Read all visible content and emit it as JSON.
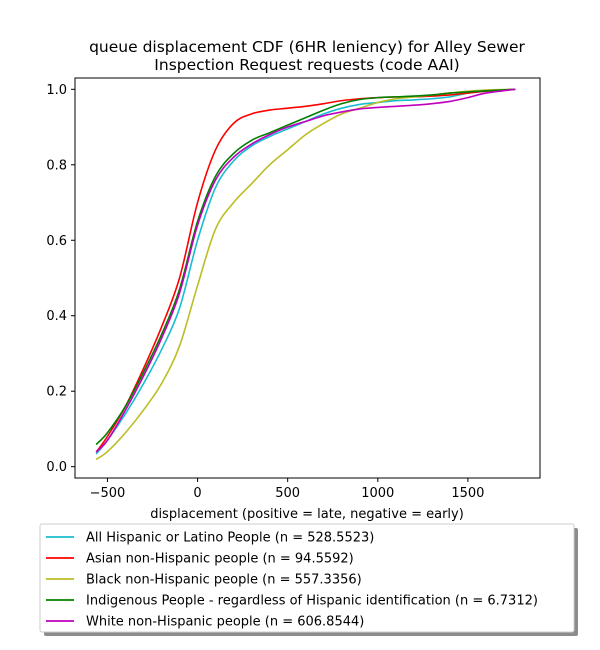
{
  "chart_data": {
    "type": "line",
    "title_lines": [
      "queue displacement CDF (6HR leniency) for Alley Sewer",
      "Inspection Request  requests (code AAI)"
    ],
    "xlabel": "displacement (positive = late, negative = early)",
    "ylabel": "",
    "xlim": [
      -680,
      1900
    ],
    "ylim": [
      -0.03,
      1.03
    ],
    "xticks": [
      -500,
      0,
      500,
      1000,
      1500
    ],
    "yticks": [
      0.0,
      0.2,
      0.4,
      0.6,
      0.8,
      1.0
    ],
    "ytick_labels": [
      "0.0",
      "0.2",
      "0.4",
      "0.6",
      "0.8",
      "1.0"
    ],
    "grid": false,
    "legend_position": "below",
    "series": [
      {
        "name": "All Hispanic or Latino People (n = 528.5523)",
        "color": "#17becf",
        "x": [
          -560,
          -500,
          -400,
          -300,
          -200,
          -100,
          0,
          100,
          200,
          300,
          400,
          500,
          600,
          700,
          800,
          900,
          1000,
          1100,
          1200,
          1300,
          1400,
          1500,
          1600,
          1760
        ],
        "y": [
          0.035,
          0.07,
          0.14,
          0.22,
          0.31,
          0.42,
          0.6,
          0.74,
          0.81,
          0.85,
          0.875,
          0.895,
          0.915,
          0.935,
          0.95,
          0.96,
          0.965,
          0.97,
          0.972,
          0.975,
          0.98,
          0.99,
          0.995,
          1.0
        ]
      },
      {
        "name": "Asian non-Hispanic people (n = 94.5592)",
        "color": "#ff0000",
        "x": [
          -560,
          -500,
          -400,
          -300,
          -200,
          -100,
          0,
          100,
          200,
          300,
          400,
          500,
          600,
          700,
          800,
          900,
          1000,
          1100,
          1200,
          1300,
          1400,
          1500,
          1600,
          1760
        ],
        "y": [
          0.04,
          0.08,
          0.16,
          0.26,
          0.37,
          0.5,
          0.7,
          0.84,
          0.91,
          0.935,
          0.945,
          0.95,
          0.955,
          0.962,
          0.97,
          0.975,
          0.978,
          0.98,
          0.98,
          0.982,
          0.985,
          0.99,
          0.995,
          1.0
        ]
      },
      {
        "name": "Black non-Hispanic people (n = 557.3356)",
        "color": "#bcbd22",
        "x": [
          -560,
          -500,
          -400,
          -300,
          -200,
          -100,
          0,
          100,
          200,
          300,
          400,
          500,
          600,
          700,
          800,
          900,
          1000,
          1100,
          1200,
          1300,
          1400,
          1500,
          1600,
          1760
        ],
        "y": [
          0.02,
          0.04,
          0.09,
          0.15,
          0.22,
          0.32,
          0.48,
          0.63,
          0.7,
          0.75,
          0.8,
          0.84,
          0.88,
          0.91,
          0.935,
          0.95,
          0.965,
          0.975,
          0.98,
          0.985,
          0.99,
          0.995,
          0.998,
          1.0
        ]
      },
      {
        "name": "Indigenous People - regardless of Hispanic identification (n = 6.7312)",
        "color": "#008000",
        "x": [
          -560,
          -500,
          -400,
          -300,
          -200,
          -100,
          0,
          100,
          200,
          300,
          400,
          500,
          600,
          700,
          800,
          900,
          1000,
          1100,
          1200,
          1300,
          1400,
          1500,
          1600,
          1760
        ],
        "y": [
          0.06,
          0.09,
          0.16,
          0.25,
          0.35,
          0.47,
          0.65,
          0.77,
          0.83,
          0.865,
          0.885,
          0.905,
          0.925,
          0.945,
          0.962,
          0.973,
          0.978,
          0.98,
          0.982,
          0.985,
          0.99,
          0.993,
          0.996,
          1.0
        ]
      },
      {
        "name": "White non-Hispanic people (n = 606.8544)",
        "color": "#bf00bf",
        "x": [
          -560,
          -500,
          -400,
          -300,
          -200,
          -100,
          0,
          100,
          200,
          300,
          400,
          500,
          600,
          700,
          800,
          900,
          1000,
          1100,
          1200,
          1300,
          1400,
          1500,
          1600,
          1760
        ],
        "y": [
          0.04,
          0.07,
          0.15,
          0.24,
          0.34,
          0.46,
          0.64,
          0.76,
          0.82,
          0.855,
          0.88,
          0.9,
          0.915,
          0.93,
          0.94,
          0.948,
          0.952,
          0.955,
          0.958,
          0.962,
          0.968,
          0.978,
          0.99,
          1.0
        ]
      }
    ]
  }
}
